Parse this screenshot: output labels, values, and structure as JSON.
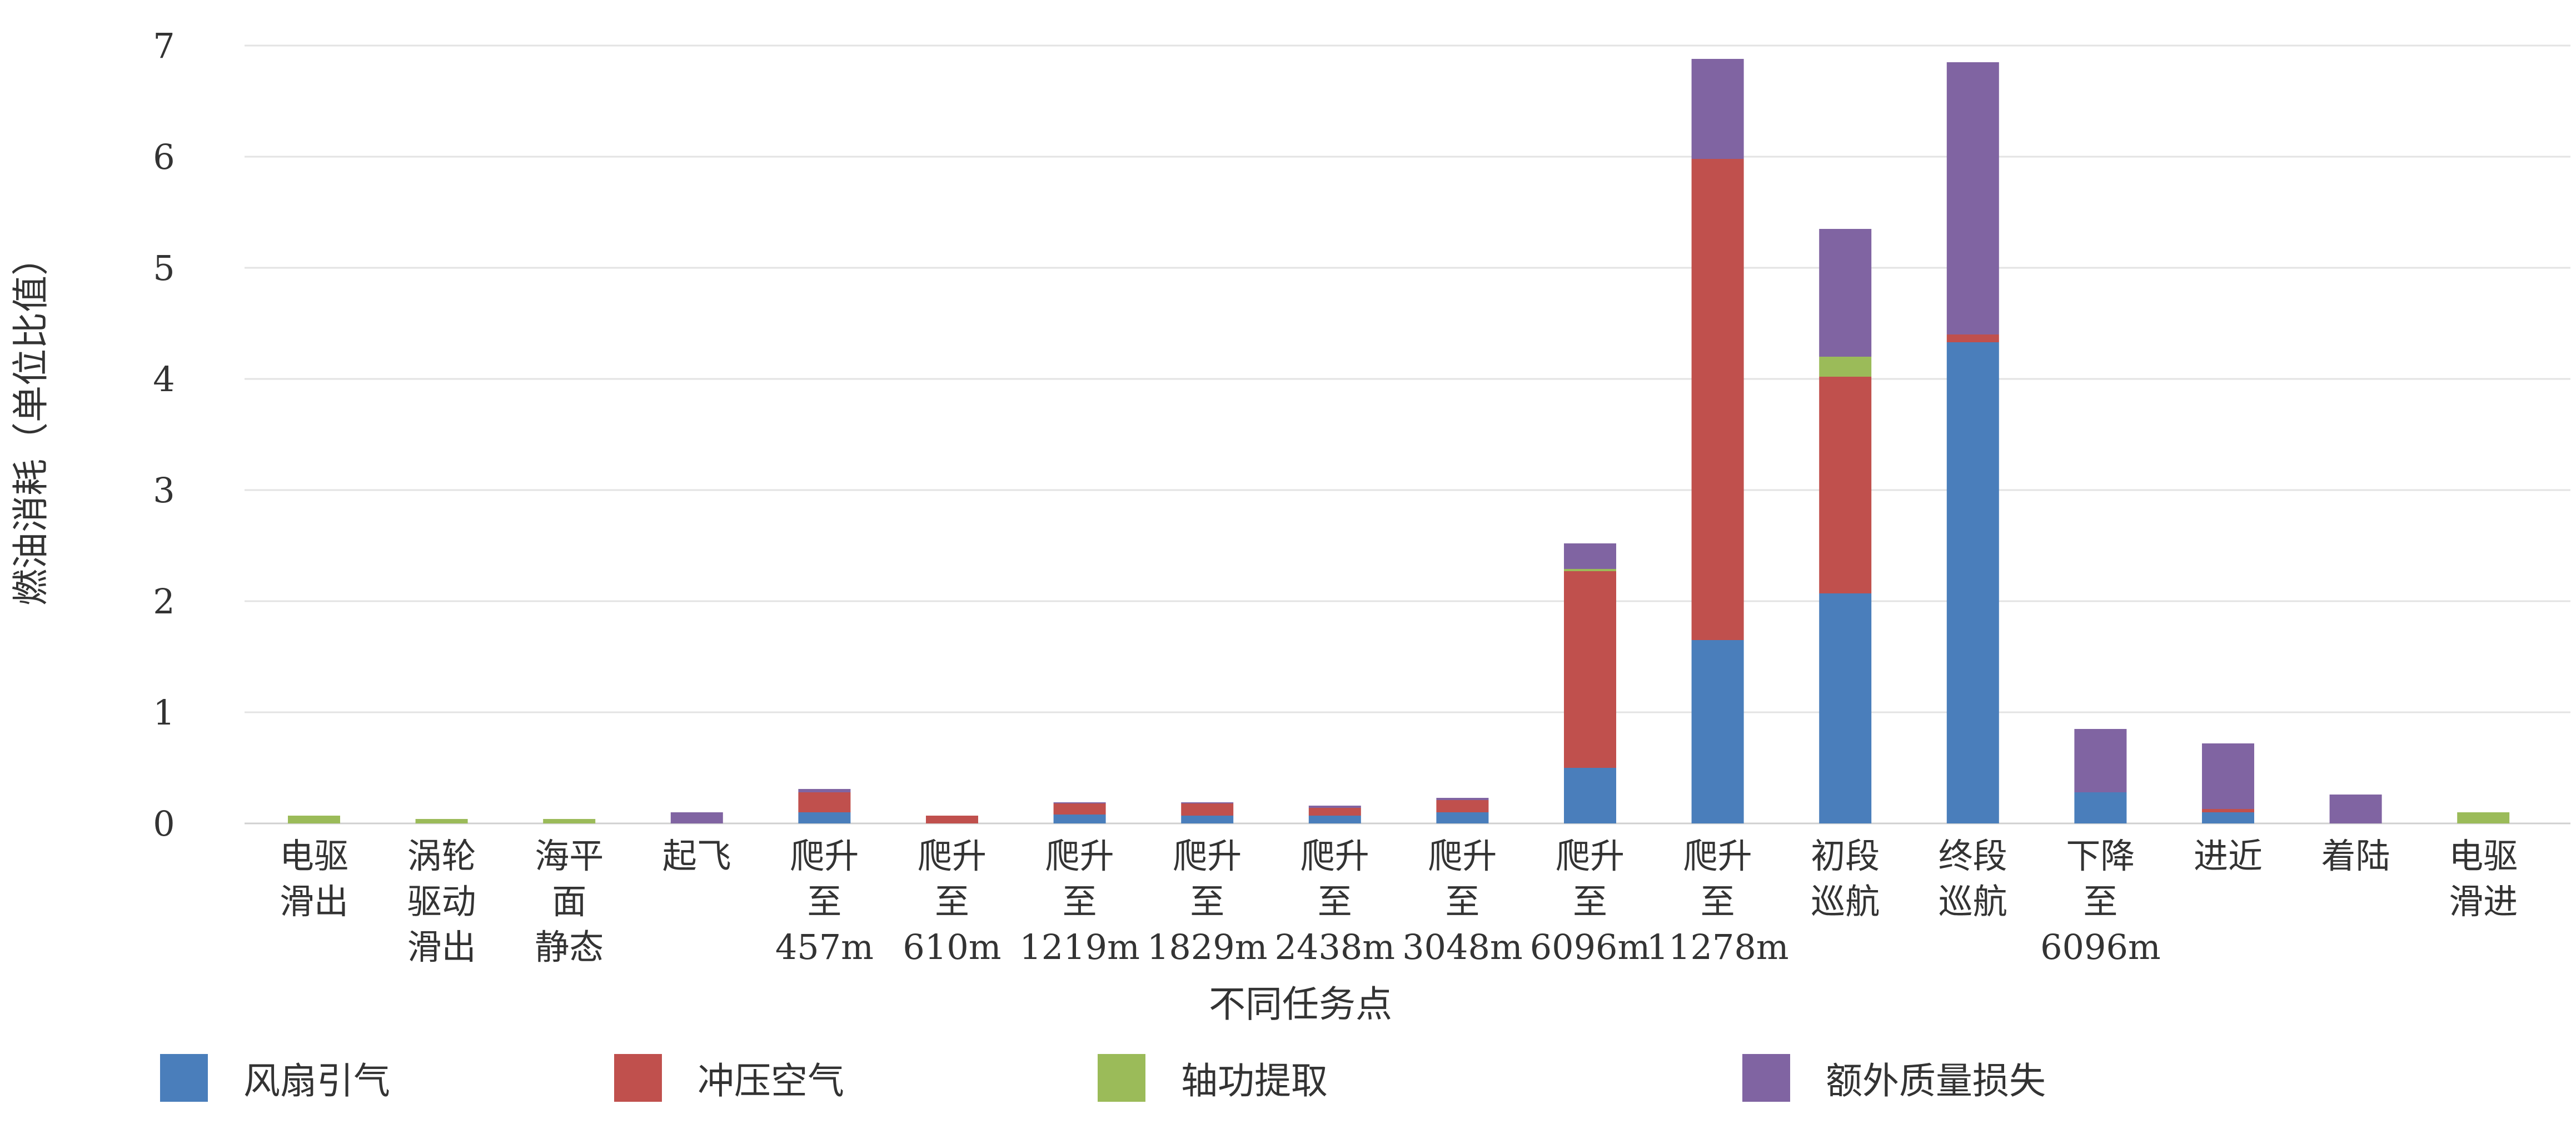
{
  "chart_data": {
    "type": "bar",
    "stacked": true,
    "xlabel": "不同任务点",
    "ylabel": "燃油消耗（单位比值）",
    "ylim": [
      0,
      7
    ],
    "yticks": [
      "0",
      "1",
      "2",
      "3",
      "4",
      "5",
      "6",
      "7"
    ],
    "grid": true,
    "legend_position": "bottom",
    "categories": [
      [
        "电驱",
        "滑出"
      ],
      [
        "涡轮",
        "驱动",
        "滑出"
      ],
      [
        "海平",
        "面",
        "静态"
      ],
      [
        "起飞"
      ],
      [
        "爬升",
        "至",
        "457m"
      ],
      [
        "爬升",
        "至",
        "610m"
      ],
      [
        "爬升",
        "至",
        "1219m"
      ],
      [
        "爬升",
        "至",
        "1829m"
      ],
      [
        "爬升",
        "至",
        "2438m"
      ],
      [
        "爬升",
        "至",
        "3048m"
      ],
      [
        "爬升",
        "至",
        "6096m"
      ],
      [
        "爬升",
        "至",
        "11278m"
      ],
      [
        "初段",
        "巡航"
      ],
      [
        "终段",
        "巡航"
      ],
      [
        "下降",
        "至",
        "6096m"
      ],
      [
        "进近"
      ],
      [
        "着陆"
      ],
      [
        "电驱",
        "滑进"
      ]
    ],
    "series": [
      {
        "name": "风扇引气",
        "color": "#4a7ebb",
        "values": [
          0,
          0,
          0,
          0,
          0.1,
          0,
          0.08,
          0.07,
          0.07,
          0.1,
          0.5,
          1.65,
          2.07,
          4.33,
          0.28,
          0.1,
          0,
          0
        ]
      },
      {
        "name": "冲压空气",
        "color": "#c0504d",
        "values": [
          0,
          0,
          0,
          0,
          0.18,
          0.07,
          0.1,
          0.11,
          0.07,
          0.11,
          1.77,
          4.33,
          1.95,
          0.07,
          0,
          0.03,
          0,
          0
        ]
      },
      {
        "name": "轴功提取",
        "color": "#9bbb59",
        "values": [
          0.07,
          0.04,
          0.04,
          0,
          0,
          0,
          0,
          0,
          0,
          0,
          0.02,
          0,
          0.18,
          0,
          0,
          0,
          0,
          0.1
        ]
      },
      {
        "name": "额外质量损失",
        "color": "#8064a2",
        "values": [
          0,
          0,
          0,
          0.1,
          0.03,
          0,
          0.01,
          0.01,
          0.02,
          0.02,
          0.23,
          0.9,
          1.15,
          2.45,
          0.57,
          0.59,
          0.26,
          0
        ]
      }
    ]
  }
}
